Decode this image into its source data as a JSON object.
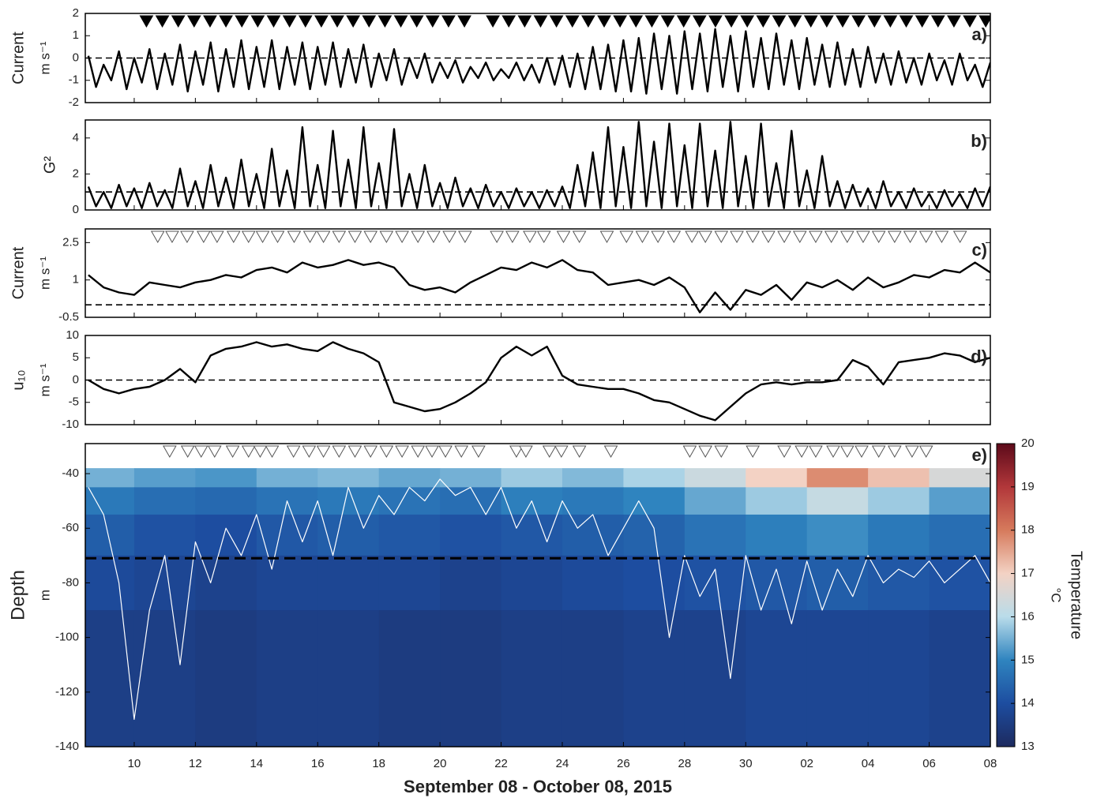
{
  "chart_data": [
    {
      "type": "line",
      "panel_label": "a)",
      "ylabel": "Current",
      "yunit": "m s⁻¹",
      "ylim": [
        -2,
        2
      ],
      "yticks": [
        -2,
        -1,
        0,
        1,
        2
      ],
      "hline": 0,
      "color": "#000000",
      "markers": [
        2.4,
        2.92,
        3.44,
        3.96,
        4.48,
        5.0,
        5.52,
        6.04,
        6.56,
        7.08,
        7.6,
        8.12,
        8.64,
        9.16,
        9.68,
        10.2,
        10.72,
        11.24,
        11.76,
        12.28,
        12.8,
        13.73,
        14.25,
        14.77,
        15.29,
        15.81,
        16.33,
        16.85,
        17.37,
        17.89,
        18.41,
        18.93,
        19.45,
        19.97,
        20.49,
        21.01,
        21.53,
        22.05,
        22.57,
        23.09,
        23.61,
        24.13,
        24.65,
        25.17,
        25.69,
        26.21,
        26.73,
        27.25,
        27.77,
        28.29,
        28.81,
        29.33,
        29.85
      ],
      "marker_color": "#000000",
      "x": [
        0.5,
        0.75,
        1,
        1.25,
        1.5,
        1.75,
        2,
        2.25,
        2.5,
        2.75,
        3,
        3.25,
        3.5,
        3.75,
        4,
        4.25,
        4.5,
        4.75,
        5,
        5.25,
        5.5,
        5.75,
        6,
        6.25,
        6.5,
        6.75,
        7,
        7.25,
        7.5,
        7.75,
        8,
        8.25,
        8.5,
        8.75,
        9,
        9.25,
        9.5,
        9.75,
        10,
        10.25,
        10.5,
        10.75,
        11,
        11.25,
        11.5,
        11.75,
        12,
        12.25,
        12.5,
        12.75,
        13,
        13.25,
        13.5,
        13.75,
        14,
        14.25,
        14.5,
        14.75,
        15,
        15.25,
        15.5,
        15.75,
        16,
        16.25,
        16.5,
        16.75,
        17,
        17.25,
        17.5,
        17.75,
        18,
        18.25,
        18.5,
        18.75,
        19,
        19.25,
        19.5,
        19.75,
        20,
        20.25,
        20.5,
        20.75,
        21,
        21.25,
        21.5,
        21.75,
        22,
        22.25,
        22.5,
        22.75,
        23,
        23.25,
        23.5,
        23.75,
        24,
        24.25,
        24.5,
        24.75,
        25,
        25.25,
        25.5,
        25.75,
        26,
        26.25,
        26.5,
        26.75,
        27,
        27.25,
        27.5,
        27.75,
        28,
        28.25,
        28.5,
        28.75,
        29,
        29.25,
        29.5,
        29.75,
        30
      ],
      "values": [
        0.1,
        -1.3,
        -0.3,
        -1.0,
        0.3,
        -1.4,
        0.0,
        -1.1,
        0.4,
        -1.4,
        0.2,
        -1.2,
        0.6,
        -1.5,
        0.3,
        -1.2,
        0.7,
        -1.5,
        0.4,
        -1.3,
        0.8,
        -1.4,
        0.5,
        -1.3,
        0.8,
        -1.4,
        0.5,
        -1.2,
        0.7,
        -1.4,
        0.5,
        -1.2,
        0.7,
        -1.3,
        0.4,
        -1.1,
        0.6,
        -1.3,
        0.2,
        -1.0,
        0.4,
        -1.2,
        0.0,
        -0.9,
        0.2,
        -1.1,
        -0.2,
        -0.9,
        -0.1,
        -1.1,
        -0.4,
        -0.9,
        -0.2,
        -1.0,
        -0.5,
        -0.9,
        -0.2,
        -1.0,
        -0.3,
        -1.1,
        0.0,
        -1.2,
        0.1,
        -1.3,
        0.2,
        -1.4,
        0.5,
        -1.4,
        0.6,
        -1.5,
        0.8,
        -1.5,
        0.9,
        -1.6,
        1.1,
        -1.4,
        1.0,
        -1.6,
        1.2,
        -1.4,
        1.1,
        -1.5,
        1.3,
        -1.3,
        1.0,
        -1.5,
        1.2,
        -1.3,
        0.9,
        -1.4,
        1.1,
        -1.2,
        0.8,
        -1.4,
        0.9,
        -1.2,
        0.6,
        -1.3,
        0.7,
        -1.2,
        0.4,
        -1.3,
        0.5,
        -1.1,
        0.2,
        -1.2,
        0.3,
        -1.1,
        0.0,
        -1.2,
        0.2,
        -1.0,
        -0.1,
        -1.2,
        0.2,
        -1.0,
        -0.3,
        -1.3,
        -0.2
      ]
    },
    {
      "type": "line",
      "panel_label": "b)",
      "ylabel": "G²",
      "ylim": [
        0,
        5
      ],
      "yticks": [
        0,
        2,
        4
      ],
      "hline": 1,
      "color": "#000000",
      "x": [
        0.5,
        0.75,
        1,
        1.25,
        1.5,
        1.75,
        2,
        2.25,
        2.5,
        2.75,
        3,
        3.25,
        3.5,
        3.75,
        4,
        4.25,
        4.5,
        4.75,
        5,
        5.25,
        5.5,
        5.75,
        6,
        6.25,
        6.5,
        6.75,
        7,
        7.25,
        7.5,
        7.75,
        8,
        8.25,
        8.5,
        8.75,
        9,
        9.25,
        9.5,
        9.75,
        10,
        10.25,
        10.5,
        10.75,
        11,
        11.25,
        11.5,
        11.75,
        12,
        12.25,
        12.5,
        12.75,
        13,
        13.25,
        13.5,
        13.75,
        14,
        14.25,
        14.5,
        14.75,
        15,
        15.25,
        15.5,
        15.75,
        16,
        16.25,
        16.5,
        16.75,
        17,
        17.25,
        17.5,
        17.75,
        18,
        18.25,
        18.5,
        18.75,
        19,
        19.25,
        19.5,
        19.75,
        20,
        20.25,
        20.5,
        20.75,
        21,
        21.25,
        21.5,
        21.75,
        22,
        22.25,
        22.5,
        22.75,
        23,
        23.25,
        23.5,
        23.75,
        24,
        24.25,
        24.5,
        24.75,
        25,
        25.25,
        25.5,
        25.75,
        26,
        26.25,
        26.5,
        26.75,
        27,
        27.25,
        27.5,
        27.75,
        28,
        28.25,
        28.5,
        28.75,
        29,
        29.25,
        29.5,
        29.75,
        30
      ],
      "values": [
        1.3,
        0.2,
        1.0,
        0.1,
        1.4,
        0.2,
        1.2,
        0.1,
        1.5,
        0.2,
        1.1,
        0.1,
        2.3,
        0.2,
        1.6,
        0.1,
        2.5,
        0.2,
        1.8,
        0.1,
        2.8,
        0.2,
        2.0,
        0.1,
        3.4,
        0.2,
        2.2,
        0.1,
        4.6,
        0.2,
        2.5,
        0.1,
        4.4,
        0.2,
        2.8,
        0.1,
        4.6,
        0.2,
        2.6,
        0.1,
        4.5,
        0.2,
        2.0,
        0.1,
        2.5,
        0.2,
        1.5,
        0.1,
        1.8,
        0.2,
        1.2,
        0.1,
        1.4,
        0.2,
        1.0,
        0.1,
        1.2,
        0.2,
        1.0,
        0.1,
        1.1,
        0.2,
        1.3,
        0.1,
        2.5,
        0.2,
        3.2,
        0.1,
        4.6,
        0.2,
        3.5,
        0.1,
        4.9,
        0.2,
        3.8,
        0.1,
        4.8,
        0.2,
        3.6,
        0.1,
        4.8,
        0.2,
        3.3,
        0.1,
        4.9,
        0.2,
        3.0,
        0.1,
        4.8,
        0.2,
        2.6,
        0.1,
        4.4,
        0.2,
        2.2,
        0.1,
        3.0,
        0.2,
        1.6,
        0.1,
        1.4,
        0.2,
        1.2,
        0.1,
        1.6,
        0.2,
        1.0,
        0.1,
        1.2,
        0.2,
        0.9,
        0.1,
        1.1,
        0.2,
        0.9,
        0.1,
        1.2,
        0.2,
        1.3
      ]
    },
    {
      "type": "line",
      "panel_label": "c)",
      "ylabel": "Current",
      "yunit": "m s⁻¹",
      "ylim": [
        -0.5,
        3.05
      ],
      "yticks": [
        -0.5,
        1,
        2.5
      ],
      "hline": 0,
      "color": "#000000",
      "markers": [
        2.77,
        3.24,
        3.73,
        4.27,
        4.71,
        5.25,
        5.74,
        6.2,
        6.69,
        7.23,
        7.75,
        8.19,
        8.7,
        9.22,
        9.73,
        10.25,
        10.76,
        11.28,
        11.79,
        12.31,
        12.82,
        13.86,
        14.37,
        14.94,
        15.4,
        16.04,
        16.56,
        17.46,
        18.1,
        18.62,
        19.13,
        19.65,
        20.24,
        20.68,
        21.2,
        21.71,
        22.23,
        22.74,
        23.26,
        23.77,
        24.29,
        24.8,
        25.32,
        25.84,
        26.35,
        26.87,
        27.38,
        27.9,
        28.41,
        29.01
      ],
      "marker_color": "#ffffff",
      "x": [
        0.5,
        1,
        1.5,
        2,
        2.5,
        3,
        3.5,
        4,
        4.5,
        5,
        5.5,
        6,
        6.5,
        7,
        7.5,
        8,
        8.5,
        9,
        9.5,
        10,
        10.5,
        11,
        11.5,
        12,
        12.5,
        13,
        13.5,
        14,
        14.5,
        15,
        15.5,
        16,
        16.5,
        17,
        17.5,
        18,
        18.5,
        19,
        19.5,
        20,
        20.5,
        21,
        21.5,
        22,
        22.5,
        23,
        23.5,
        24,
        24.5,
        25,
        25.5,
        26,
        26.5,
        27,
        27.5,
        28,
        28.5,
        29,
        29.5,
        30
      ],
      "values": [
        1.2,
        0.7,
        0.5,
        0.4,
        0.9,
        0.8,
        0.7,
        0.9,
        1.0,
        1.2,
        1.1,
        1.4,
        1.5,
        1.3,
        1.7,
        1.5,
        1.6,
        1.8,
        1.6,
        1.7,
        1.5,
        0.8,
        0.6,
        0.7,
        0.5,
        0.9,
        1.2,
        1.5,
        1.4,
        1.7,
        1.5,
        1.8,
        1.4,
        1.3,
        0.8,
        0.9,
        1.0,
        0.8,
        1.1,
        0.7,
        -0.3,
        0.5,
        -0.2,
        0.6,
        0.4,
        0.8,
        0.2,
        0.9,
        0.7,
        1.0,
        0.6,
        1.1,
        0.7,
        0.9,
        1.2,
        1.1,
        1.4,
        1.3,
        1.7,
        1.3
      ]
    },
    {
      "type": "line",
      "panel_label": "d)",
      "ylabel": "u₁₀",
      "yunit": "m s⁻¹",
      "ylim": [
        -10,
        10
      ],
      "yticks": [
        -10,
        -5,
        0,
        5,
        10
      ],
      "hline": 0,
      "color": "#000000",
      "x": [
        0.5,
        1,
        1.5,
        2,
        2.5,
        3,
        3.5,
        4,
        4.5,
        5,
        5.5,
        6,
        6.5,
        7,
        7.5,
        8,
        8.5,
        9,
        9.5,
        10,
        10.5,
        11,
        11.5,
        12,
        12.5,
        13,
        13.5,
        14,
        14.5,
        15,
        15.5,
        16,
        16.5,
        17,
        17.5,
        18,
        18.5,
        19,
        19.5,
        20,
        20.5,
        21,
        21.5,
        22,
        22.5,
        23,
        23.5,
        24,
        24.5,
        25,
        25.5,
        26,
        26.5,
        27,
        27.5,
        28,
        28.5,
        29,
        29.5,
        30
      ],
      "values": [
        0,
        -2,
        -3,
        -2,
        -1.5,
        0,
        2.5,
        -0.5,
        5.5,
        7,
        7.5,
        8.5,
        7.5,
        8,
        7,
        6.5,
        8.5,
        7,
        6,
        4,
        -5,
        -6,
        -7,
        -6.5,
        -5,
        -3,
        -0.5,
        5,
        7.5,
        5.5,
        7.5,
        1,
        -1,
        -1.5,
        -2,
        -2,
        -3,
        -4.5,
        -5,
        -6.5,
        -8,
        -9,
        -6,
        -3,
        -1,
        -0.5,
        -1,
        -0.5,
        -0.5,
        0,
        4.5,
        3,
        -1,
        4,
        4.5,
        5,
        6,
        5.5,
        4,
        5
      ]
    },
    {
      "type": "heatmap",
      "panel_label": "e)",
      "ylabel": "Depth",
      "yunit": "m",
      "ylim": [
        -140,
        -29
      ],
      "yticks": [
        -140,
        -120,
        -100,
        -80,
        -60,
        -40
      ],
      "hline": -71,
      "color": "#ffffff",
      "xlim": [
        0.4,
        30
      ],
      "xticks": [
        {
          "value": 2,
          "label": "10"
        },
        {
          "value": 4,
          "label": "12"
        },
        {
          "value": 6,
          "label": "14"
        },
        {
          "value": 8,
          "label": "16"
        },
        {
          "value": 10,
          "label": "18"
        },
        {
          "value": 12,
          "label": "20"
        },
        {
          "value": 14,
          "label": "22"
        },
        {
          "value": 16,
          "label": "24"
        },
        {
          "value": 18,
          "label": "26"
        },
        {
          "value": 20,
          "label": "28"
        },
        {
          "value": 22,
          "label": "30"
        },
        {
          "value": 24,
          "label": "02"
        },
        {
          "value": 26,
          "label": "04"
        },
        {
          "value": 28,
          "label": "06"
        },
        {
          "value": 30,
          "label": "08"
        }
      ],
      "xlabel": "September 08 - October 08, 2015",
      "markers": [
        3.16,
        3.75,
        4.19,
        4.63,
        5.22,
        5.74,
        6.12,
        6.51,
        7.21,
        7.72,
        8.19,
        8.7,
        9.22,
        9.73,
        10.25,
        10.76,
        11.28,
        11.74,
        12.18,
        12.7,
        13.26,
        14.5,
        14.81,
        15.58,
        15.97,
        16.56,
        17.59,
        20.17,
        20.68,
        21.2,
        22.23,
        23.26,
        23.83,
        24.29,
        24.86,
        25.32,
        25.79,
        26.35,
        26.87,
        27.44,
        27.9
      ],
      "marker_color": "#ffffff",
      "x_edges": [
        0.4,
        2,
        4,
        6,
        8,
        10,
        12,
        14,
        16,
        18,
        20,
        22,
        24,
        26,
        28,
        30
      ],
      "y_edges": [
        -38,
        -45,
        -55,
        -70,
        -90,
        -140
      ],
      "z": [
        [
          15.5,
          15.3,
          15.2,
          15.5,
          15.6,
          15.4,
          15.5,
          15.8,
          15.6,
          15.9,
          16.3,
          17.0,
          17.8,
          17.2,
          16.5
        ],
        [
          14.8,
          14.6,
          14.5,
          14.7,
          14.8,
          14.7,
          14.6,
          14.9,
          14.8,
          15.0,
          15.4,
          15.8,
          16.2,
          15.8,
          15.3
        ],
        [
          14.3,
          14.1,
          14.0,
          14.2,
          14.3,
          14.2,
          14.1,
          14.2,
          14.3,
          14.4,
          14.7,
          14.9,
          15.1,
          14.8,
          14.6
        ],
        [
          13.9,
          13.8,
          13.7,
          13.8,
          13.8,
          13.8,
          13.7,
          13.8,
          13.9,
          14.0,
          14.1,
          14.2,
          14.3,
          14.2,
          14.1
        ],
        [
          13.6,
          13.6,
          13.5,
          13.6,
          13.6,
          13.5,
          13.5,
          13.6,
          13.6,
          13.7,
          13.7,
          13.8,
          13.8,
          13.8,
          13.7
        ]
      ],
      "clim": [
        13,
        20
      ],
      "cticks": [
        13,
        14,
        15,
        16,
        17,
        18,
        19,
        20
      ],
      "colors": [
        "#1d2a5f",
        "#1d4da0",
        "#2f84bf",
        "#b9dcea",
        "#f3d2c4",
        "#d67a5c",
        "#b2373a",
        "#5c0a1a"
      ],
      "clabel": "Temperature",
      "cunit": "°C",
      "x": [
        0.5,
        1,
        1.5,
        2,
        2.5,
        3,
        3.5,
        4,
        4.5,
        5,
        5.5,
        6,
        6.5,
        7,
        7.5,
        8,
        8.5,
        9,
        9.5,
        10,
        10.5,
        11,
        11.5,
        12,
        12.5,
        13,
        13.5,
        14,
        14.5,
        15,
        15.5,
        16,
        16.5,
        17,
        17.5,
        18,
        18.5,
        19,
        19.5,
        20,
        20.5,
        21,
        21.5,
        22,
        22.5,
        23,
        23.5,
        24,
        24.5,
        25,
        25.5,
        26,
        26.5,
        27,
        27.5,
        28,
        28.5,
        29,
        29.5,
        30
      ],
      "values": [
        -45,
        -55,
        -80,
        -130,
        -90,
        -70,
        -110,
        -65,
        -80,
        -60,
        -70,
        -55,
        -75,
        -50,
        -65,
        -50,
        -70,
        -45,
        -60,
        -48,
        -55,
        -45,
        -50,
        -42,
        -48,
        -45,
        -55,
        -45,
        -60,
        -50,
        -65,
        -50,
        -60,
        -55,
        -70,
        -60,
        -50,
        -60,
        -100,
        -70,
        -85,
        -75,
        -115,
        -70,
        -90,
        -75,
        -95,
        -72,
        -90,
        -75,
        -85,
        -70,
        -80,
        -75,
        -78,
        -72,
        -80,
        -75,
        -70,
        -80
      ]
    }
  ]
}
